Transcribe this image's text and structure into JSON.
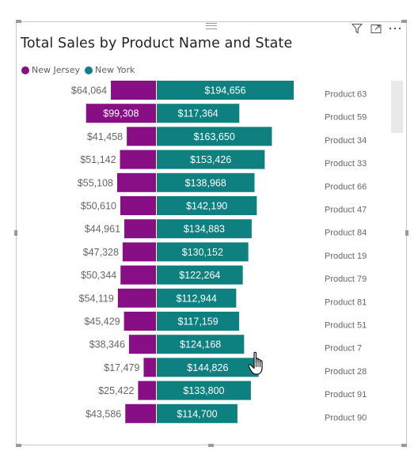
{
  "header": {
    "filter_icon": "filter-icon",
    "focus_icon": "focus-mode-icon",
    "more_icon": "more-options-icon"
  },
  "chart_data": {
    "type": "bar",
    "orientation": "horizontal-diverging",
    "title": "Total Sales by Product Name and State",
    "legend_placement": "top-left",
    "categories": [
      "Product 63",
      "Product 59",
      "Product 34",
      "Product 33",
      "Product 66",
      "Product 47",
      "Product 84",
      "Product 19",
      "Product 79",
      "Product 81",
      "Product 51",
      "Product 7",
      "Product 28",
      "Product 91",
      "Product 90"
    ],
    "series": [
      {
        "name": "New Jersey",
        "color": "#880e85",
        "values": [
          64064,
          99308,
          41458,
          51142,
          55108,
          50610,
          44961,
          47328,
          50344,
          54119,
          45429,
          38346,
          17479,
          25422,
          43586
        ],
        "labels": [
          "$64,064",
          "$99,308",
          "$41,458",
          "$51,142",
          "$55,108",
          "$50,610",
          "$44,961",
          "$47,328",
          "$50,344",
          "$54,119",
          "$45,429",
          "$38,346",
          "$17,479",
          "$25,422",
          "$43,586"
        ]
      },
      {
        "name": "New York",
        "color": "#0e8080",
        "values": [
          194656,
          117364,
          163650,
          153426,
          138968,
          142190,
          134883,
          130152,
          122264,
          112944,
          117159,
          124168,
          144826,
          133800,
          114700
        ],
        "labels": [
          "$194,656",
          "$117,364",
          "$163,650",
          "$153,426",
          "$138,968",
          "$142,190",
          "$134,883",
          "$130,152",
          "$122,264",
          "$112,944",
          "$117,159",
          "$124,168",
          "$144,826",
          "$133,800",
          "$114,700"
        ]
      }
    ],
    "grid": false,
    "axes_visible": false
  },
  "colors": {
    "new_jersey": "#880e85",
    "new_york": "#0e8080",
    "label_outside": "#666666",
    "label_inside": "#ffffff",
    "category_label": "#666666"
  }
}
